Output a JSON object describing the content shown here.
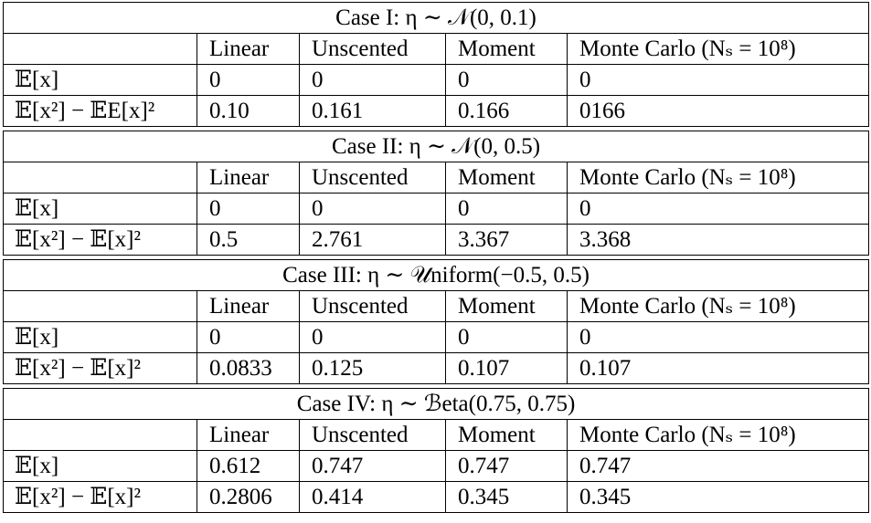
{
  "column_headers": [
    "",
    "Linear",
    "Unscented",
    "Moment",
    "Monte Carlo (Nₛ = 10⁸)"
  ],
  "cases": [
    {
      "title": "Case I: η ∼ 𝒩(0, 0.1)",
      "rows": [
        {
          "label": "𝔼[x]",
          "values": [
            "0",
            "0",
            "0",
            "0"
          ]
        },
        {
          "label": "𝔼[x²] − 𝔼E[x]²",
          "values": [
            "0.10",
            "0.161",
            "0.166",
            "0166"
          ]
        }
      ]
    },
    {
      "title": "Case II: η ∼ 𝒩(0, 0.5)",
      "rows": [
        {
          "label": "𝔼[x]",
          "values": [
            "0",
            "0",
            "0",
            "0"
          ]
        },
        {
          "label": "𝔼[x²] − 𝔼[x]²",
          "values": [
            "0.5",
            "2.761",
            "3.367",
            "3.368"
          ]
        }
      ]
    },
    {
      "title": "Case III: η ∼ 𝒰niform(−0.5, 0.5)",
      "rows": [
        {
          "label": "𝔼[x]",
          "values": [
            "0",
            "0",
            "0",
            "0"
          ]
        },
        {
          "label": "𝔼[x²] − 𝔼[x]²",
          "values": [
            "0.0833",
            "0.125",
            "0.107",
            "0.107"
          ]
        }
      ]
    },
    {
      "title": "Case IV: η ∼ ℬeta(0.75, 0.75)",
      "rows": [
        {
          "label": "𝔼[x]",
          "values": [
            "0.612",
            "0.747",
            "0.747",
            "0.747"
          ]
        },
        {
          "label": "𝔼[x²] − 𝔼[x]²",
          "values": [
            "0.2806",
            "0.414",
            "0.345",
            "0.345"
          ]
        }
      ]
    }
  ]
}
